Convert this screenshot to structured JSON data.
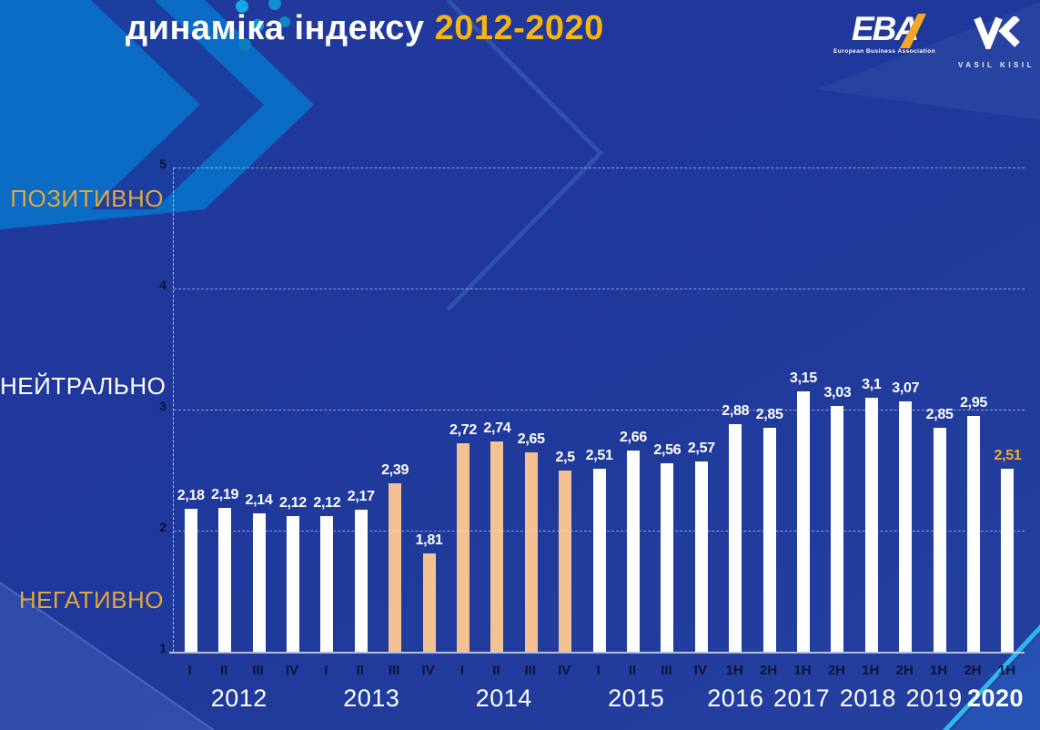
{
  "title": {
    "text": "динаміка індексу",
    "highlight": "2012-2020"
  },
  "logos": {
    "eba": {
      "name": "EBA",
      "subtitle": "European Business Association"
    },
    "vk": {
      "name": "VASIL KISIL"
    }
  },
  "chart_data": {
    "type": "bar",
    "title": "динаміка індексу 2012-2020",
    "ylim": [
      1,
      5
    ],
    "yticks": [
      5,
      4,
      3,
      2,
      1
    ],
    "grid": "dashed-horizontal",
    "zones": [
      {
        "label": "ПОЗИТИВНО",
        "color": "#E4A63C",
        "y_value": 4.73
      },
      {
        "label": "НЕЙТРАЛЬНО",
        "color": "#FFFFFF",
        "y_value": 3.18
      },
      {
        "label": "НЕГАТИВНО",
        "color": "#E4A63C",
        "y_value": 1.41
      }
    ],
    "colors": {
      "bar_default": "#FFFFFF",
      "bar_highlight": "#F4C292",
      "label_default": "#FFFFFF",
      "label_final": "#F0B028",
      "accent_cyan": "#2FB7EC",
      "bright_blue": "#0A6CC5"
    },
    "bars": [
      {
        "period": "I",
        "year": "2012",
        "value": 2.18,
        "label": "2,18",
        "highlight": false
      },
      {
        "period": "II",
        "year": "2012",
        "value": 2.19,
        "label": "2,19",
        "highlight": false
      },
      {
        "period": "III",
        "year": "2012",
        "value": 2.14,
        "label": "2,14",
        "highlight": false
      },
      {
        "period": "IV",
        "year": "2012",
        "value": 2.12,
        "label": "2,12",
        "highlight": false
      },
      {
        "period": "I",
        "year": "2013",
        "value": 2.12,
        "label": "2,12",
        "highlight": false
      },
      {
        "period": "II",
        "year": "2013",
        "value": 2.17,
        "label": "2,17",
        "highlight": false
      },
      {
        "period": "III",
        "year": "2013",
        "value": 2.39,
        "label": "2,39",
        "highlight": true
      },
      {
        "period": "IV",
        "year": "2013",
        "value": 1.81,
        "label": "1,81",
        "highlight": true
      },
      {
        "period": "I",
        "year": "2014",
        "value": 2.72,
        "label": "2,72",
        "highlight": true
      },
      {
        "period": "II",
        "year": "2014",
        "value": 2.74,
        "label": "2,74",
        "highlight": true
      },
      {
        "period": "III",
        "year": "2014",
        "value": 2.65,
        "label": "2,65",
        "highlight": true
      },
      {
        "period": "IV",
        "year": "2014",
        "value": 2.5,
        "label": "2,5",
        "highlight": true
      },
      {
        "period": "I",
        "year": "2015",
        "value": 2.51,
        "label": "2,51",
        "highlight": false
      },
      {
        "period": "II",
        "year": "2015",
        "value": 2.66,
        "label": "2,66",
        "highlight": false
      },
      {
        "period": "III",
        "year": "2015",
        "value": 2.56,
        "label": "2,56",
        "highlight": false
      },
      {
        "period": "IV",
        "year": "2015",
        "value": 2.57,
        "label": "2,57",
        "highlight": false
      },
      {
        "period": "1H",
        "year": "2016",
        "value": 2.88,
        "label": "2,88",
        "highlight": false
      },
      {
        "period": "2H",
        "year": "2016",
        "value": 2.85,
        "label": "2,85",
        "highlight": false
      },
      {
        "period": "1H",
        "year": "2017",
        "value": 3.15,
        "label": "3,15",
        "highlight": false
      },
      {
        "period": "2H",
        "year": "2017",
        "value": 3.03,
        "label": "3,03",
        "highlight": false
      },
      {
        "period": "1H",
        "year": "2018",
        "value": 3.1,
        "label": "3,1",
        "highlight": false
      },
      {
        "period": "2H",
        "year": "2018",
        "value": 3.07,
        "label": "3,07",
        "highlight": false
      },
      {
        "period": "1H",
        "year": "2019",
        "value": 2.85,
        "label": "2,85",
        "highlight": false
      },
      {
        "period": "2H",
        "year": "2019",
        "value": 2.95,
        "label": "2,95",
        "highlight": false
      },
      {
        "period": "1H",
        "year": "2020",
        "value": 2.51,
        "label": "2,51",
        "highlight": false,
        "final": true
      }
    ],
    "year_groups": [
      {
        "label": "2012",
        "bars": 4,
        "bold": false
      },
      {
        "label": "2013",
        "bars": 4,
        "bold": false
      },
      {
        "label": "2014",
        "bars": 4,
        "bold": false
      },
      {
        "label": "2015",
        "bars": 4,
        "bold": false
      },
      {
        "label": "2016",
        "bars": 2,
        "bold": false
      },
      {
        "label": "2017",
        "bars": 2,
        "bold": false
      },
      {
        "label": "2018",
        "bars": 2,
        "bold": false
      },
      {
        "label": "2019",
        "bars": 2,
        "bold": false
      },
      {
        "label": "2020",
        "bars": 1,
        "bold": true
      }
    ]
  }
}
